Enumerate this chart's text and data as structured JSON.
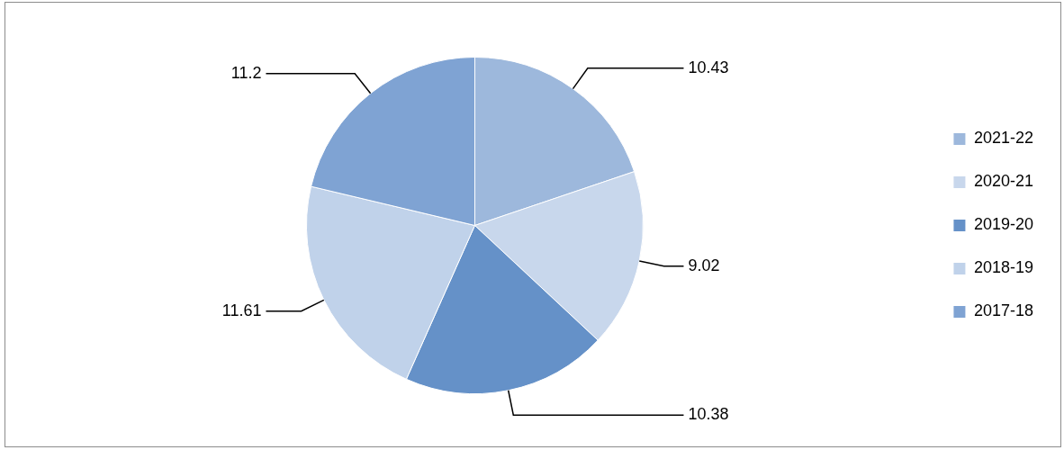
{
  "chart_data": {
    "type": "pie",
    "categories": [
      "2021-22",
      "2020-21",
      "2019-20",
      "2018-19",
      "2017-18"
    ],
    "values": [
      10.43,
      9.02,
      10.38,
      11.61,
      11.2
    ],
    "colors": [
      "#9db8dc",
      "#c8d7ec",
      "#6591c8",
      "#c0d2ea",
      "#7fa3d3"
    ],
    "data_labels": true,
    "legend": "right"
  }
}
